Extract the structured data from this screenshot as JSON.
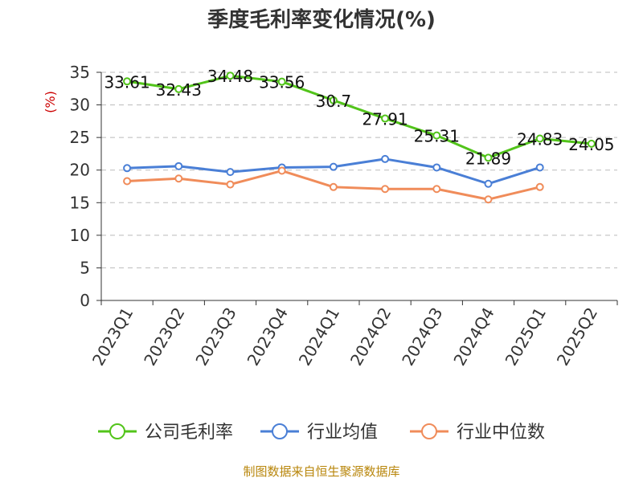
{
  "chart_data": {
    "type": "line",
    "title": "季度毛利率变化情况(%)",
    "ylabel": "(%)",
    "xlabel": "",
    "ylim": [
      0,
      35
    ],
    "yticks": [
      0,
      5,
      10,
      15,
      20,
      25,
      30,
      35
    ],
    "categories": [
      "2023Q1",
      "2023Q2",
      "2023Q3",
      "2023Q4",
      "2024Q1",
      "2024Q2",
      "2024Q3",
      "2024Q4",
      "2025Q1",
      "2025Q2"
    ],
    "grid": true,
    "legend_position": "bottom",
    "series": [
      {
        "name": "公司毛利率",
        "color": "#52c41a",
        "values": [
          33.61,
          32.43,
          34.48,
          33.56,
          30.7,
          27.91,
          25.31,
          21.89,
          24.83,
          24.05
        ],
        "data_labels": [
          "33.61",
          "32.43",
          "34.48",
          "33.56",
          "30.7",
          "27.91",
          "25.31",
          "21.89",
          "24.83",
          "24.05"
        ]
      },
      {
        "name": "行业均值",
        "color": "#4a7fd6",
        "values": [
          20.3,
          20.6,
          19.7,
          20.4,
          20.5,
          21.7,
          20.4,
          17.9,
          20.4,
          null
        ]
      },
      {
        "name": "行业中位数",
        "color": "#f08c5a",
        "values": [
          18.3,
          18.7,
          17.8,
          19.9,
          17.4,
          17.1,
          17.1,
          15.5,
          17.4,
          null
        ]
      }
    ],
    "source": "制图数据来自恒生聚源数据库"
  }
}
